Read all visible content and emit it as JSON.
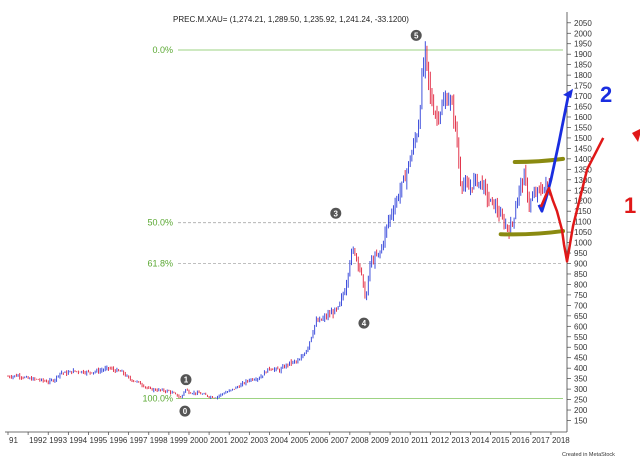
{
  "chart_data": {
    "type": "ohlc",
    "title": "PREC.M.XAU= (1,274.21, 1,289.50, 1,235.92, 1,241.24, -33.1200)",
    "footer": "Created in MetaStock",
    "x_ticks": [
      "91",
      "1992",
      "1993",
      "1994",
      "1995",
      "1996",
      "1997",
      "1998",
      "1999",
      "2000",
      "2001",
      "2002",
      "2003",
      "2004",
      "2005",
      "2006",
      "2007",
      "2008",
      "2009",
      "2010",
      "2011",
      "2012",
      "2013",
      "2014",
      "2015",
      "2016",
      "2017",
      "2018"
    ],
    "y_ticks": [
      150,
      200,
      250,
      300,
      350,
      400,
      450,
      500,
      550,
      600,
      650,
      700,
      750,
      800,
      850,
      900,
      950,
      1000,
      1050,
      1100,
      1150,
      1200,
      1250,
      1300,
      1350,
      1400,
      1450,
      1500,
      1550,
      1600,
      1650,
      1700,
      1750,
      1800,
      1850,
      1900,
      1950,
      2000,
      2050
    ],
    "ylim": [
      100,
      2080
    ],
    "xlim": [
      1991.0,
      2018.7
    ],
    "series": [
      {
        "values": [
          [
            1991.0,
            360
          ],
          [
            1991.5,
            365
          ],
          [
            1992.0,
            350
          ],
          [
            1992.5,
            345
          ],
          [
            1993.0,
            335
          ],
          [
            1993.3,
            345
          ],
          [
            1993.6,
            380
          ],
          [
            1993.9,
            375
          ],
          [
            1994.2,
            385
          ],
          [
            1994.6,
            385
          ],
          [
            1995.0,
            380
          ],
          [
            1995.5,
            387
          ],
          [
            1996.0,
            400
          ],
          [
            1996.3,
            390
          ],
          [
            1996.7,
            380
          ],
          [
            1997.0,
            350
          ],
          [
            1997.3,
            340
          ],
          [
            1997.7,
            320
          ],
          [
            1998.0,
            300
          ],
          [
            1998.5,
            295
          ],
          [
            1999.0,
            290
          ],
          [
            1999.4,
            270
          ],
          [
            1999.6,
            258
          ],
          [
            1999.8,
            300
          ],
          [
            2000.0,
            285
          ],
          [
            2000.5,
            280
          ],
          [
            2001.0,
            265
          ],
          [
            2001.3,
            260
          ],
          [
            2001.7,
            280
          ],
          [
            2002.0,
            290
          ],
          [
            2002.5,
            315
          ],
          [
            2003.0,
            345
          ],
          [
            2003.5,
            355
          ],
          [
            2004.0,
            400
          ],
          [
            2004.5,
            390
          ],
          [
            2005.0,
            425
          ],
          [
            2005.5,
            435
          ],
          [
            2005.9,
            500
          ],
          [
            2006.3,
            620
          ],
          [
            2006.6,
            630
          ],
          [
            2007.0,
            660
          ],
          [
            2007.4,
            680
          ],
          [
            2007.8,
            790
          ],
          [
            2008.0,
            920
          ],
          [
            2008.2,
            970
          ],
          [
            2008.5,
            880
          ],
          [
            2008.8,
            720
          ],
          [
            2009.0,
            900
          ],
          [
            2009.5,
            950
          ],
          [
            2009.9,
            1100
          ],
          [
            2010.3,
            1200
          ],
          [
            2010.7,
            1300
          ],
          [
            2011.0,
            1400
          ],
          [
            2011.4,
            1550
          ],
          [
            2011.6,
            1800
          ],
          [
            2011.75,
            1900
          ],
          [
            2012.0,
            1700
          ],
          [
            2012.3,
            1600
          ],
          [
            2012.6,
            1650
          ],
          [
            2012.9,
            1700
          ],
          [
            2013.2,
            1600
          ],
          [
            2013.5,
            1300
          ],
          [
            2013.9,
            1250
          ],
          [
            2014.2,
            1300
          ],
          [
            2014.6,
            1280
          ],
          [
            2014.9,
            1200
          ],
          [
            2015.2,
            1180
          ],
          [
            2015.5,
            1120
          ],
          [
            2015.9,
            1060
          ],
          [
            2016.1,
            1100
          ],
          [
            2016.4,
            1250
          ],
          [
            2016.7,
            1320
          ],
          [
            2016.9,
            1180
          ],
          [
            2017.2,
            1230
          ],
          [
            2017.5,
            1250
          ],
          [
            2017.8,
            1280
          ],
          [
            2017.95,
            1241
          ]
        ]
      }
    ],
    "fib_levels": [
      {
        "label": "0.0%",
        "value": 1920
      },
      {
        "label": "50.0%",
        "value": 1095
      },
      {
        "label": "61.8%",
        "value": 900
      },
      {
        "label": "100.0%",
        "value": 255
      }
    ],
    "wave_labels": [
      {
        "label": "0",
        "x": 1999.8,
        "y": 195
      },
      {
        "label": "1",
        "x": 1999.85,
        "y": 345
      },
      {
        "label": "3",
        "x": 2007.3,
        "y": 1140
      },
      {
        "label": "4",
        "x": 2008.7,
        "y": 615
      },
      {
        "label": "5",
        "x": 2011.3,
        "y": 1990
      }
    ],
    "annotations": {
      "support_band": {
        "x1": 2015.5,
        "x2": 2018.6,
        "y1": 1050,
        "y2": 1055
      },
      "resistance_band": {
        "x1": 2016.2,
        "x2": 2018.6,
        "y1": 1385,
        "y2": 1400
      },
      "blue_label": "2",
      "red_label": "1"
    }
  }
}
